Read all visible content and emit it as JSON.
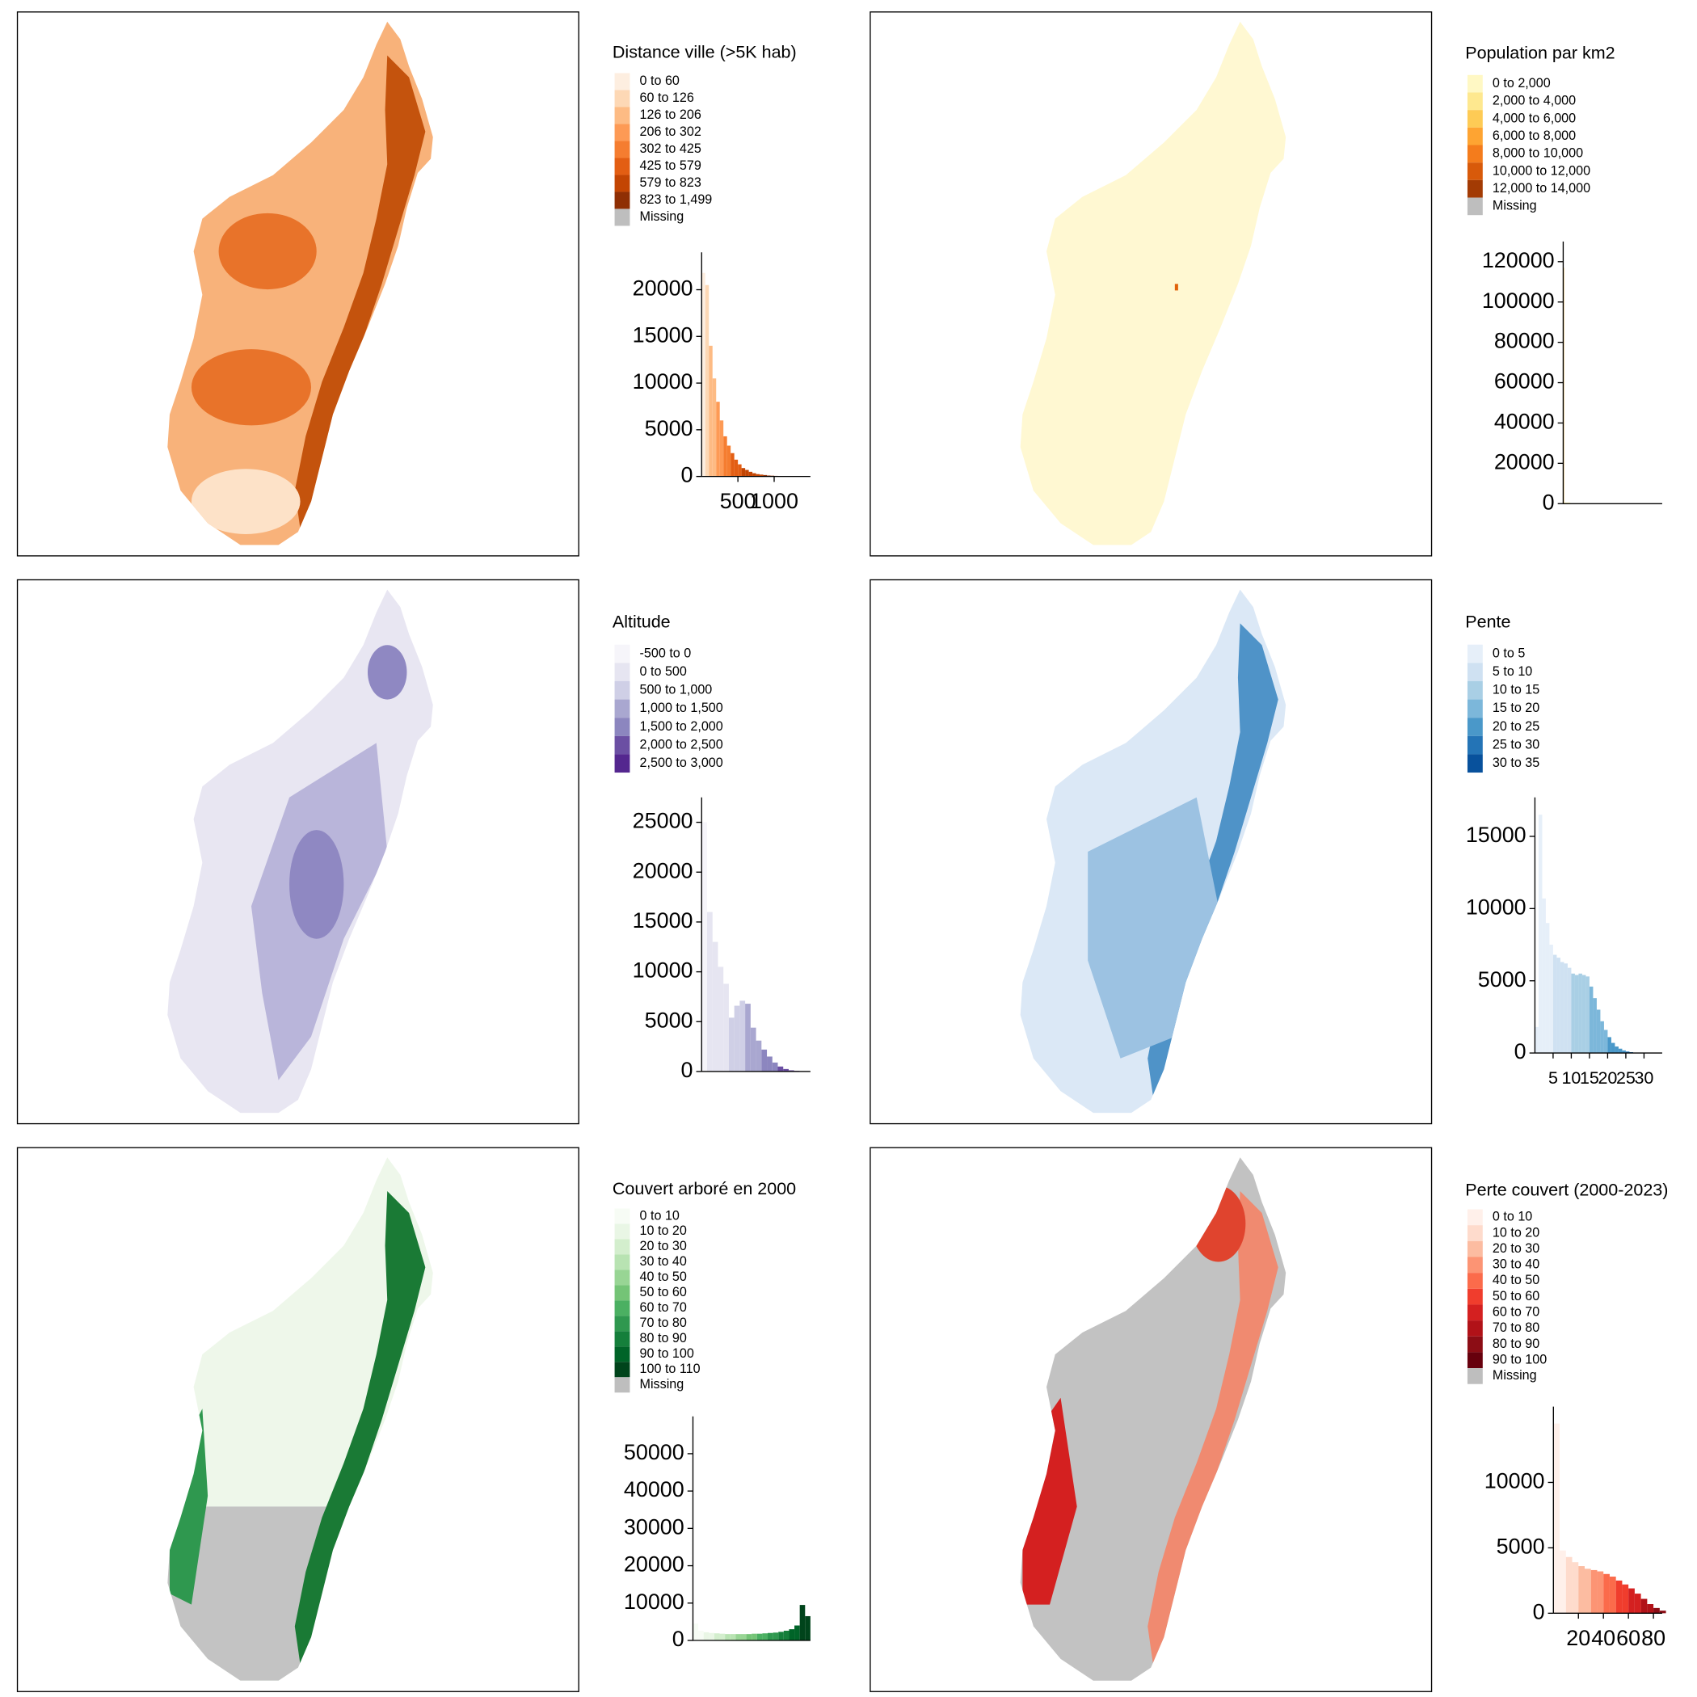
{
  "chart_data": [
    {
      "type": "histogram",
      "legend_title": "Distance ville (>5K hab)",
      "legend": [
        {
          "label": "0 to 60",
          "color": "#fdeee0"
        },
        {
          "label": "60 to 126",
          "color": "#fdd8b5"
        },
        {
          "label": "126 to 206",
          "color": "#fdbb84"
        },
        {
          "label": "206 to 302",
          "color": "#fd9a55"
        },
        {
          "label": "302 to 425",
          "color": "#f57d30"
        },
        {
          "label": "425 to 579",
          "color": "#e35e13"
        },
        {
          "label": "579 to 823",
          "color": "#c34503"
        },
        {
          "label": "823 to 1,499",
          "color": "#8f2f04"
        },
        {
          "label": "Missing",
          "color": "#bebebe"
        }
      ],
      "bins": [
        0,
        50,
        100,
        150,
        200,
        250,
        300,
        350,
        400,
        450,
        500,
        550,
        600,
        650,
        700,
        750,
        800,
        850,
        900,
        950,
        1000,
        1050,
        1100,
        1150,
        1200,
        1250,
        1300,
        1350,
        1400,
        1450,
        1500
      ],
      "counts": [
        21800,
        20500,
        14000,
        10500,
        8000,
        6000,
        4300,
        3300,
        2500,
        1800,
        1300,
        900,
        700,
        500,
        350,
        250,
        200,
        150,
        100,
        80,
        60,
        50,
        40,
        30,
        20,
        15,
        10,
        5,
        5,
        0
      ],
      "colors": [
        "#fdeee0",
        "#fdd8b5",
        "#fdbb84",
        "#fdbb84",
        "#fd9a55",
        "#fd9a55",
        "#f57d30",
        "#f57d30",
        "#e35e13",
        "#e35e13",
        "#e35e13",
        "#c34503",
        "#c34503",
        "#c34503",
        "#c34503",
        "#c34503",
        "#c34503",
        "#8f2f04",
        "#8f2f04",
        "#8f2f04",
        "#8f2f04",
        "#8f2f04",
        "#8f2f04",
        "#8f2f04",
        "#8f2f04",
        "#8f2f04",
        "#8f2f04",
        "#8f2f04",
        "#8f2f04",
        "#8f2f04"
      ],
      "xlim": [
        0,
        1500
      ],
      "ylim": [
        0,
        24000
      ],
      "yticks": [
        0,
        5000,
        10000,
        15000,
        20000
      ],
      "xticks": [
        500,
        1000
      ]
    },
    {
      "type": "histogram",
      "legend_title": "Population par km2",
      "legend": [
        {
          "label": "0 to 2,000",
          "color": "#fff8c4"
        },
        {
          "label": "2,000 to 4,000",
          "color": "#fee88f"
        },
        {
          "label": "4,000 to 6,000",
          "color": "#fecb55"
        },
        {
          "label": "6,000 to 8,000",
          "color": "#fea432"
        },
        {
          "label": "8,000 to 10,000",
          "color": "#f47c1c"
        },
        {
          "label": "10,000 to 12,000",
          "color": "#d85a0a"
        },
        {
          "label": "12,000 to 14,000",
          "color": "#a33b04"
        },
        {
          "label": "Missing",
          "color": "#bebebe"
        }
      ],
      "bins": [
        0,
        100,
        1000,
        2000,
        3000,
        4000,
        5000,
        6000,
        7000,
        8000,
        9000,
        10000,
        11000,
        12000,
        13000,
        14000
      ],
      "counts": [
        117000,
        600,
        150,
        60,
        30,
        15,
        10,
        6,
        4,
        3,
        2,
        1,
        1,
        1,
        1
      ],
      "colors": [
        "#fec44f",
        "#fff8c4",
        "#fff8c4",
        "#fee88f",
        "#fee88f",
        "#fecb55",
        "#fecb55",
        "#fea432",
        "#fea432",
        "#f47c1c",
        "#f47c1c",
        "#d85a0a",
        "#d85a0a",
        "#a33b04",
        "#a33b04"
      ],
      "xlim": [
        0,
        14000
      ],
      "ylim": [
        0,
        130000
      ],
      "yticks": [
        0,
        20000,
        40000,
        60000,
        80000,
        100000,
        120000
      ],
      "xticks": []
    },
    {
      "type": "histogram",
      "legend_title": "Altitude",
      "legend": [
        {
          "label": "-500 to 0",
          "color": "#f6f5fa"
        },
        {
          "label": "0 to 500",
          "color": "#e6e5f1"
        },
        {
          "label": "500 to 1,000",
          "color": "#cfcfe6"
        },
        {
          "label": "1,000 to 1,500",
          "color": "#a9a7d0"
        },
        {
          "label": "1,500 to 2,000",
          "color": "#8c86bf"
        },
        {
          "label": "2,000 to 2,500",
          "color": "#6b4fa3"
        },
        {
          "label": "2,500 to 3,000",
          "color": "#54278f"
        }
      ],
      "bins": [
        0,
        150,
        300,
        450,
        600,
        750,
        900,
        1050,
        1200,
        1350,
        1500,
        1650,
        1800,
        1950,
        2100,
        2250,
        2400,
        2550,
        2700,
        2850,
        3000
      ],
      "counts": [
        25000,
        16000,
        13000,
        10500,
        8800,
        5400,
        6600,
        7100,
        6800,
        4400,
        3100,
        2200,
        1500,
        900,
        500,
        250,
        120,
        60,
        20,
        5
      ],
      "colors": [
        "#f6f5fa",
        "#e6e5f1",
        "#e6e5f1",
        "#e6e5f1",
        "#e6e5f1",
        "#cfcfe6",
        "#cfcfe6",
        "#cfcfe6",
        "#a9a7d0",
        "#a9a7d0",
        "#a9a7d0",
        "#8c86bf",
        "#8c86bf",
        "#8c86bf",
        "#6b4fa3",
        "#6b4fa3",
        "#6b4fa3",
        "#54278f",
        "#54278f",
        "#54278f"
      ],
      "xlim": [
        0,
        3000
      ],
      "ylim": [
        0,
        27500
      ],
      "yticks": [
        0,
        5000,
        10000,
        15000,
        20000,
        25000
      ],
      "xticks": []
    },
    {
      "type": "histogram",
      "legend_title": "Pente",
      "legend": [
        {
          "label": "0 to 5",
          "color": "#e6eff9"
        },
        {
          "label": "5 to 10",
          "color": "#cfe1f2"
        },
        {
          "label": "10 to 15",
          "color": "#a9cfe5"
        },
        {
          "label": "15 to 20",
          "color": "#7cb7da"
        },
        {
          "label": "20 to 25",
          "color": "#4a98c9"
        },
        {
          "label": "25 to 30",
          "color": "#2474b6"
        },
        {
          "label": "30 to 35",
          "color": "#08519c"
        }
      ],
      "bins": [
        0,
        1,
        2,
        3,
        4,
        5,
        6,
        7,
        8,
        9,
        10,
        11,
        12,
        13,
        14,
        15,
        16,
        17,
        18,
        19,
        20,
        21,
        22,
        23,
        24,
        25,
        26,
        27,
        28,
        29,
        30,
        31,
        32,
        33,
        34,
        35
      ],
      "counts": [
        1800,
        16500,
        10700,
        9000,
        7500,
        6800,
        6600,
        6300,
        6200,
        5900,
        5500,
        5400,
        5500,
        5400,
        5300,
        4600,
        3800,
        3000,
        2200,
        1600,
        1100,
        700,
        450,
        300,
        180,
        100,
        60,
        30,
        15,
        8,
        5,
        3,
        2,
        1,
        0
      ],
      "colors": [
        "#e6eff9",
        "#e6eff9",
        "#e6eff9",
        "#e6eff9",
        "#e6eff9",
        "#cfe1f2",
        "#cfe1f2",
        "#cfe1f2",
        "#cfe1f2",
        "#cfe1f2",
        "#a9cfe5",
        "#a9cfe5",
        "#a9cfe5",
        "#a9cfe5",
        "#a9cfe5",
        "#7cb7da",
        "#7cb7da",
        "#7cb7da",
        "#7cb7da",
        "#7cb7da",
        "#4a98c9",
        "#4a98c9",
        "#4a98c9",
        "#4a98c9",
        "#4a98c9",
        "#2474b6",
        "#2474b6",
        "#2474b6",
        "#2474b6",
        "#2474b6",
        "#08519c",
        "#08519c",
        "#08519c",
        "#08519c",
        "#08519c"
      ],
      "xlim": [
        0,
        35
      ],
      "ylim": [
        0,
        17700
      ],
      "yticks": [
        0,
        5000,
        10000,
        15000
      ],
      "xticks": [
        5,
        10,
        15,
        20,
        25,
        30
      ]
    },
    {
      "type": "histogram",
      "legend_title": "Couvert arboré en 2000",
      "legend": [
        {
          "label": "0 to 10",
          "color": "#f7fcf5"
        },
        {
          "label": "10 to 20",
          "color": "#e9f6e5"
        },
        {
          "label": "20 to 30",
          "color": "#d3eecd"
        },
        {
          "label": "30 to 40",
          "color": "#b8e3b2"
        },
        {
          "label": "40 to 50",
          "color": "#98d594"
        },
        {
          "label": "50 to 60",
          "color": "#74c476"
        },
        {
          "label": "60 to 70",
          "color": "#4bb062"
        },
        {
          "label": "70 to 80",
          "color": "#2f984f"
        },
        {
          "label": "80 to 90",
          "color": "#157f3b"
        },
        {
          "label": "90 to 100",
          "color": "#006428"
        },
        {
          "label": "100 to 110",
          "color": "#00441b"
        },
        {
          "label": "Missing",
          "color": "#bebebe"
        }
      ],
      "bins": [
        0,
        5,
        10,
        15,
        20,
        25,
        30,
        35,
        40,
        45,
        50,
        55,
        60,
        65,
        70,
        75,
        80,
        85,
        90,
        95,
        100,
        105,
        110
      ],
      "counts": [
        4500,
        2600,
        2200,
        2000,
        1900,
        1800,
        1700,
        1700,
        1700,
        1700,
        1700,
        1800,
        1800,
        1900,
        2000,
        2100,
        2300,
        2600,
        3000,
        4000,
        9500,
        6500
      ],
      "colors": [
        "#f7fcf5",
        "#f7fcf5",
        "#e9f6e5",
        "#e9f6e5",
        "#d3eecd",
        "#d3eecd",
        "#b8e3b2",
        "#b8e3b2",
        "#98d594",
        "#98d594",
        "#74c476",
        "#74c476",
        "#4bb062",
        "#4bb062",
        "#2f984f",
        "#2f984f",
        "#157f3b",
        "#157f3b",
        "#006428",
        "#006428",
        "#00441b",
        "#00441b"
      ],
      "xlim": [
        0,
        110
      ],
      "ylim": [
        0,
        60000
      ],
      "yticks": [
        0,
        10000,
        20000,
        30000,
        40000,
        50000
      ],
      "xticks": []
    },
    {
      "type": "histogram",
      "legend_title": "Perte couvert (2000-2023)",
      "legend": [
        {
          "label": "0 to 10",
          "color": "#fff0ea"
        },
        {
          "label": "10 to 20",
          "color": "#fedbcc"
        },
        {
          "label": "20 to 30",
          "color": "#fcbca1"
        },
        {
          "label": "30 to 40",
          "color": "#fc9474"
        },
        {
          "label": "40 to 50",
          "color": "#fb6b4b"
        },
        {
          "label": "50 to 60",
          "color": "#f03d2d"
        },
        {
          "label": "60 to 70",
          "color": "#d42020"
        },
        {
          "label": "70 to 80",
          "color": "#b11218"
        },
        {
          "label": "80 to 90",
          "color": "#8c0d15"
        },
        {
          "label": "90 to 100",
          "color": "#67000d"
        },
        {
          "label": "Missing",
          "color": "#bebebe"
        }
      ],
      "bins": [
        0,
        5,
        10,
        15,
        20,
        25,
        30,
        35,
        40,
        45,
        50,
        55,
        60,
        65,
        70,
        75,
        80,
        85,
        90
      ],
      "counts": [
        14500,
        4800,
        4300,
        3900,
        3600,
        3400,
        3300,
        3200,
        3000,
        2800,
        2500,
        2200,
        1900,
        1500,
        1100,
        700,
        400,
        200
      ],
      "colors": [
        "#fff0ea",
        "#fff0ea",
        "#fedbcc",
        "#fedbcc",
        "#fcbca1",
        "#fcbca1",
        "#fc9474",
        "#fc9474",
        "#fb6b4b",
        "#fb6b4b",
        "#f03d2d",
        "#f03d2d",
        "#d42020",
        "#d42020",
        "#b11218",
        "#b11218",
        "#8c0d15",
        "#8c0d15"
      ],
      "xlim": [
        0,
        87
      ],
      "ylim": [
        0,
        15800
      ],
      "yticks": [
        0,
        5000,
        10000
      ],
      "xticks": [
        20,
        40,
        60,
        80
      ]
    }
  ]
}
